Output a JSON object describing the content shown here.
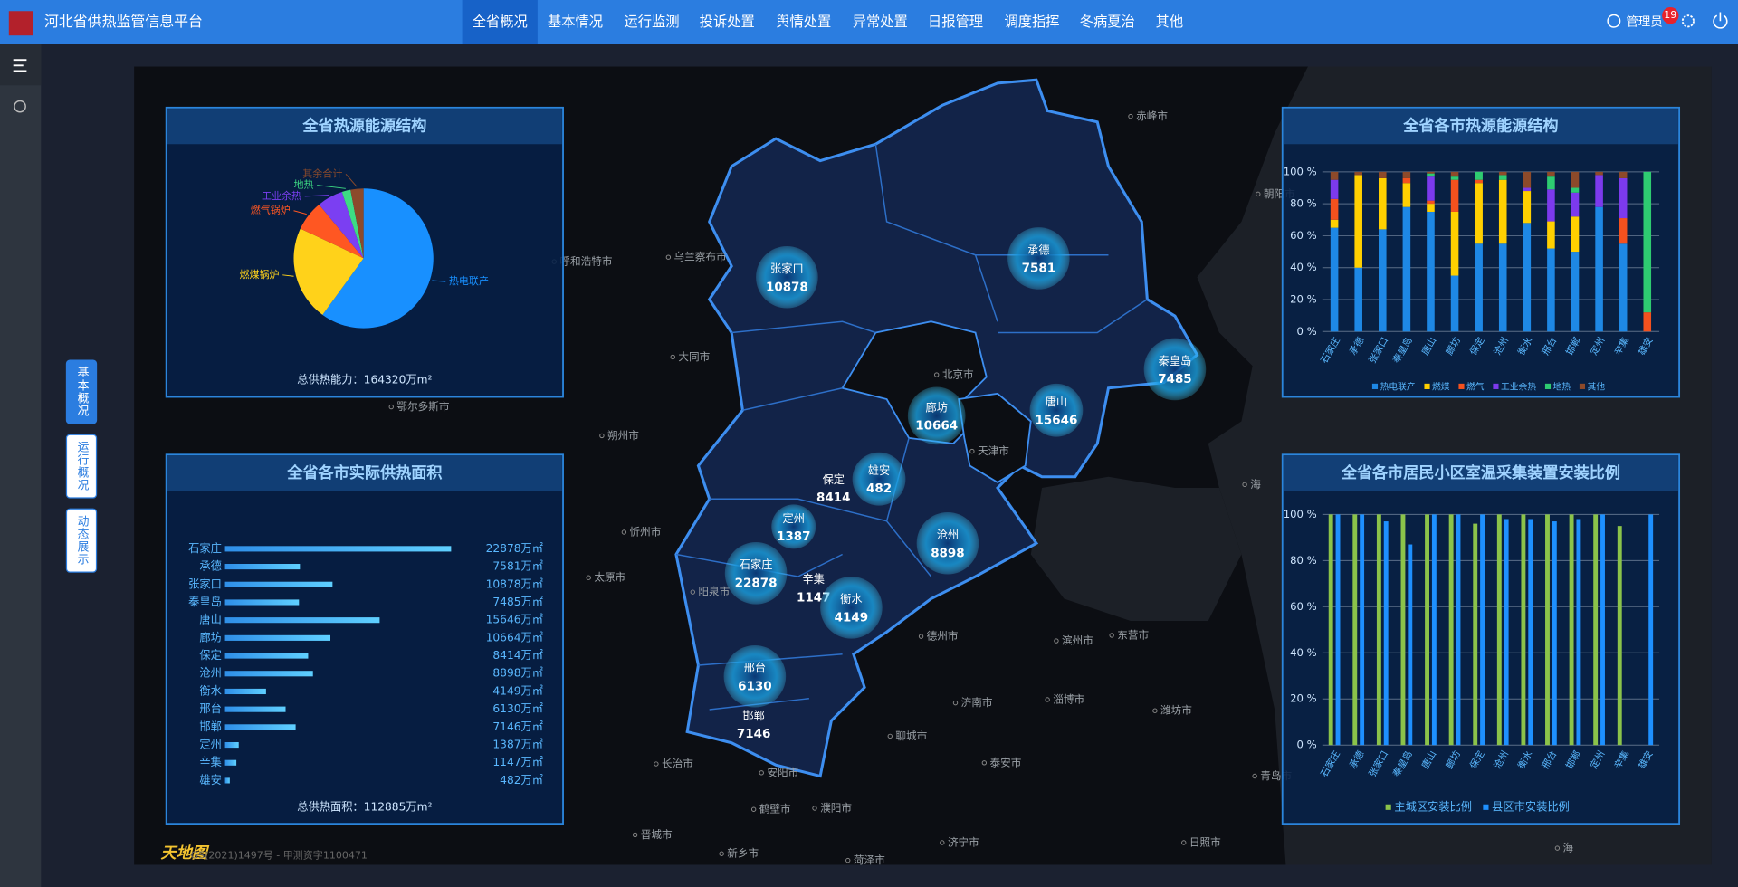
{
  "header": {
    "title": "河北省供热监管信息平台",
    "nav": [
      "全省概况",
      "基本情况",
      "运行监测",
      "投诉处置",
      "舆情处置",
      "异常处置",
      "日报管理",
      "调度指挥",
      "冬病夏治",
      "其他"
    ],
    "user": "管理员",
    "badge": 19
  },
  "side_tabs": [
    "基本概况",
    "运行概况",
    "动态展示"
  ],
  "map": {
    "markers": [
      {
        "name": "张家口",
        "value": 10878
      },
      {
        "name": "承德",
        "value": 7581
      },
      {
        "name": "秦皇岛",
        "value": 7485
      },
      {
        "name": "唐山",
        "value": 15646
      },
      {
        "name": "廊坊",
        "value": 10664
      },
      {
        "name": "雄安",
        "value": 482
      },
      {
        "name": "保定",
        "value": 8414
      },
      {
        "name": "定州",
        "value": 1387
      },
      {
        "name": "石家庄",
        "value": 22878
      },
      {
        "name": "辛集",
        "value": 1147
      },
      {
        "name": "衡水",
        "value": 4149
      },
      {
        "name": "沧州",
        "value": 8898
      },
      {
        "name": "邢台",
        "value": 6130
      },
      {
        "name": "邯郸",
        "value": 7146
      }
    ],
    "places": [
      "赤峰市",
      "朝阳市",
      "乌兰察布市",
      "呼和浩特市",
      "大同市",
      "北京市",
      "天津市",
      "朔州市",
      "鄂尔多斯市",
      "忻州市",
      "太原市",
      "阳泉市",
      "德州市",
      "滨州市",
      "东营市",
      "济南市",
      "淄博市",
      "潍坊市",
      "聊城市",
      "泰安市",
      "长治市",
      "安阳市",
      "鹤壁市",
      "濮阳市",
      "晋城市",
      "新乡市",
      "济宁市",
      "菏泽市",
      "日照市",
      "青岛市",
      "海",
      "海"
    ],
    "logo": "天地图",
    "copyright": "GS(2021)1497号 - 甲测资字1100471"
  },
  "chart_data": [
    {
      "type": "pie",
      "title": "全省热源能源结构",
      "categories": [
        "热电联产",
        "燃煤锅炉",
        "燃气锅炉",
        "工业余热",
        "地热",
        "其余合计"
      ],
      "values": [
        60,
        22,
        7,
        6,
        2,
        3
      ],
      "colors": [
        "#1890ff",
        "#ffd21a",
        "#ff5722",
        "#7b3ff2",
        "#3ddc84",
        "#8b4a2b"
      ],
      "footer": "总供热能力：164320万m²"
    },
    {
      "type": "hbar",
      "title": "全省各市实际供热面积",
      "categories": [
        "石家庄",
        "承德",
        "张家口",
        "秦皇岛",
        "唐山",
        "廊坊",
        "保定",
        "沧州",
        "衡水",
        "邢台",
        "邯郸",
        "定州",
        "辛集",
        "雄安"
      ],
      "values": [
        22878,
        7581,
        10878,
        7485,
        15646,
        10664,
        8414,
        8898,
        4149,
        6130,
        7146,
        1387,
        1147,
        482
      ],
      "value_labels": [
        "22878万㎡",
        "7581万㎡",
        "10878万㎡",
        "7485万㎡",
        "15646万㎡",
        "10664万㎡",
        "8414万㎡",
        "8898万㎡",
        "4149万㎡",
        "6130万㎡",
        "7146万㎡",
        "1387万㎡",
        "1147万㎡",
        "482万㎡"
      ],
      "color": "#4fc3f7",
      "footer": "总供热面积：112885万m²"
    },
    {
      "type": "stacked_bar",
      "title": "全省各市热源能源结构",
      "categories": [
        "石家庄",
        "承德",
        "张家口",
        "秦皇岛",
        "唐山",
        "廊坊",
        "保定",
        "沧州",
        "衡水",
        "邢台",
        "邯郸",
        "定州",
        "辛集",
        "雄安"
      ],
      "series": [
        {
          "name": "热电联产",
          "color": "#1e88e5",
          "values": [
            65,
            40,
            64,
            78,
            75,
            35,
            55,
            55,
            68,
            52,
            50,
            78,
            55,
            0
          ]
        },
        {
          "name": "燃煤",
          "color": "#ffd000",
          "values": [
            5,
            58,
            32,
            15,
            5,
            40,
            38,
            40,
            20,
            17,
            22,
            0,
            0,
            0
          ]
        },
        {
          "name": "燃气",
          "color": "#f4511e",
          "values": [
            13,
            0,
            0,
            3,
            2,
            20,
            2,
            0,
            0,
            0,
            0,
            0,
            16,
            12
          ]
        },
        {
          "name": "工业余热",
          "color": "#7c3aed",
          "values": [
            12,
            0,
            0,
            0,
            15,
            0,
            0,
            0,
            2,
            20,
            15,
            20,
            25,
            0
          ]
        },
        {
          "name": "地热",
          "color": "#2ecc71",
          "values": [
            0,
            0,
            0,
            0,
            2,
            2,
            5,
            3,
            0,
            8,
            3,
            0,
            0,
            88
          ]
        },
        {
          "name": "其他",
          "color": "#8d4a2a",
          "values": [
            5,
            2,
            4,
            4,
            1,
            3,
            0,
            2,
            10,
            3,
            10,
            2,
            4,
            0
          ]
        }
      ],
      "ylim": [
        0,
        100
      ],
      "yticks": [
        {
          "value": 0,
          "label": "0 %"
        },
        {
          "value": 20,
          "label": "20 %"
        },
        {
          "value": 40,
          "label": "40 %"
        },
        {
          "value": 60,
          "label": "60 %"
        },
        {
          "value": 80,
          "label": "80 %"
        },
        {
          "value": 100,
          "label": "100 %"
        }
      ],
      "grid": true
    },
    {
      "type": "grouped_bar",
      "title": "全省各市居民小区室温采集装置安装比例",
      "categories": [
        "石家庄",
        "承德",
        "张家口",
        "秦皇岛",
        "唐山",
        "廊坊",
        "保定",
        "沧州",
        "衡水",
        "邢台",
        "邯郸",
        "定州",
        "辛集",
        "雄安"
      ],
      "series": [
        {
          "name": "主城区安装比例",
          "color": "#8bc34a",
          "values": [
            100,
            100,
            100,
            100,
            100,
            100,
            96,
            100,
            100,
            100,
            100,
            100,
            95,
            null
          ]
        },
        {
          "name": "县区市安装比例",
          "color": "#1e90ff",
          "values": [
            100,
            100,
            97,
            87,
            100,
            100,
            100,
            98,
            98,
            97,
            98,
            100,
            null,
            100
          ]
        }
      ],
      "ylim": [
        0,
        100
      ],
      "yticks": [
        {
          "value": 0,
          "label": "0 %"
        },
        {
          "value": 20,
          "label": "20 %"
        },
        {
          "value": 40,
          "label": "40 %"
        },
        {
          "value": 60,
          "label": "60 %"
        },
        {
          "value": 80,
          "label": "80 %"
        },
        {
          "value": 100,
          "label": "100 %"
        }
      ],
      "grid": true
    }
  ]
}
